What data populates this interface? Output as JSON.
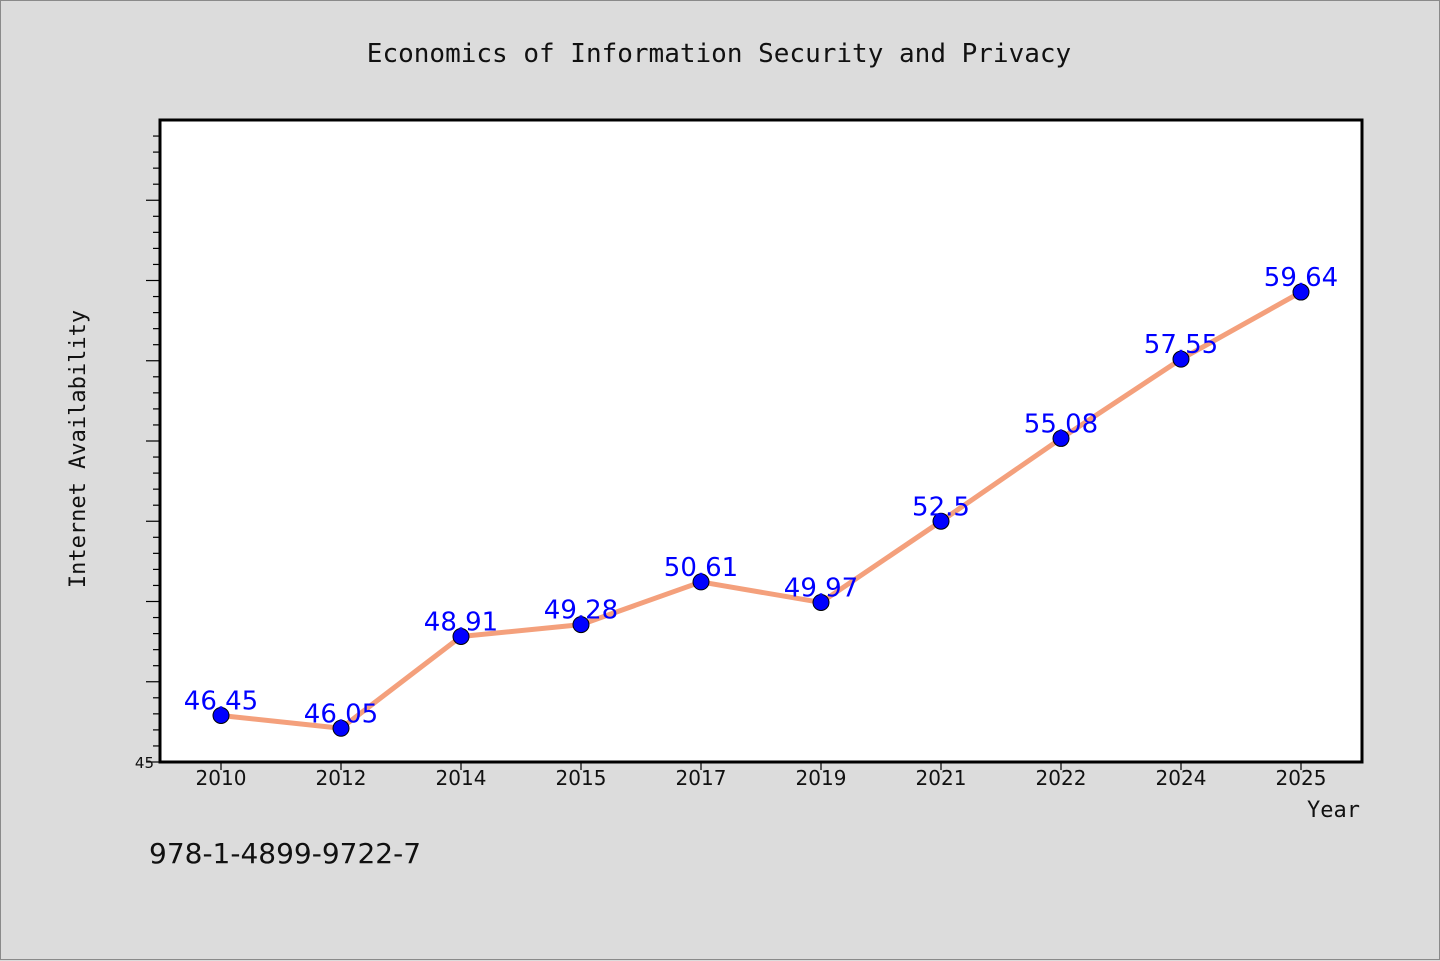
{
  "chart_data": {
    "type": "line",
    "title": "Economics of Information Security and Privacy",
    "xlabel": "Year",
    "ylabel": "Internet Availability",
    "categories": [
      "2010",
      "2012",
      "2014",
      "2015",
      "2017",
      "2019",
      "2021",
      "2022",
      "2024",
      "2025"
    ],
    "series": [
      {
        "values": [
          46.45,
          46.05,
          48.91,
          49.28,
          50.61,
          49.97,
          52.5,
          55.08,
          57.55,
          59.64
        ],
        "labels": [
          "46.45",
          "46.05",
          "48.91",
          "49.28",
          "50.61",
          "49.97",
          "52.5",
          "55.08",
          "57.55",
          "59.64"
        ],
        "line_color": "#f4a07c",
        "marker_color": "#0000ff"
      }
    ],
    "ylim": [
      45,
      65
    ],
    "y_tick_labels": [
      "45"
    ],
    "grid": false,
    "legend": "none"
  },
  "footer": {
    "isbn": "978-1-4899-9722-7"
  },
  "colors": {
    "background": "#dcdcdc",
    "plot_background": "#ffffff",
    "axis": "#000000",
    "text": "#111111"
  }
}
